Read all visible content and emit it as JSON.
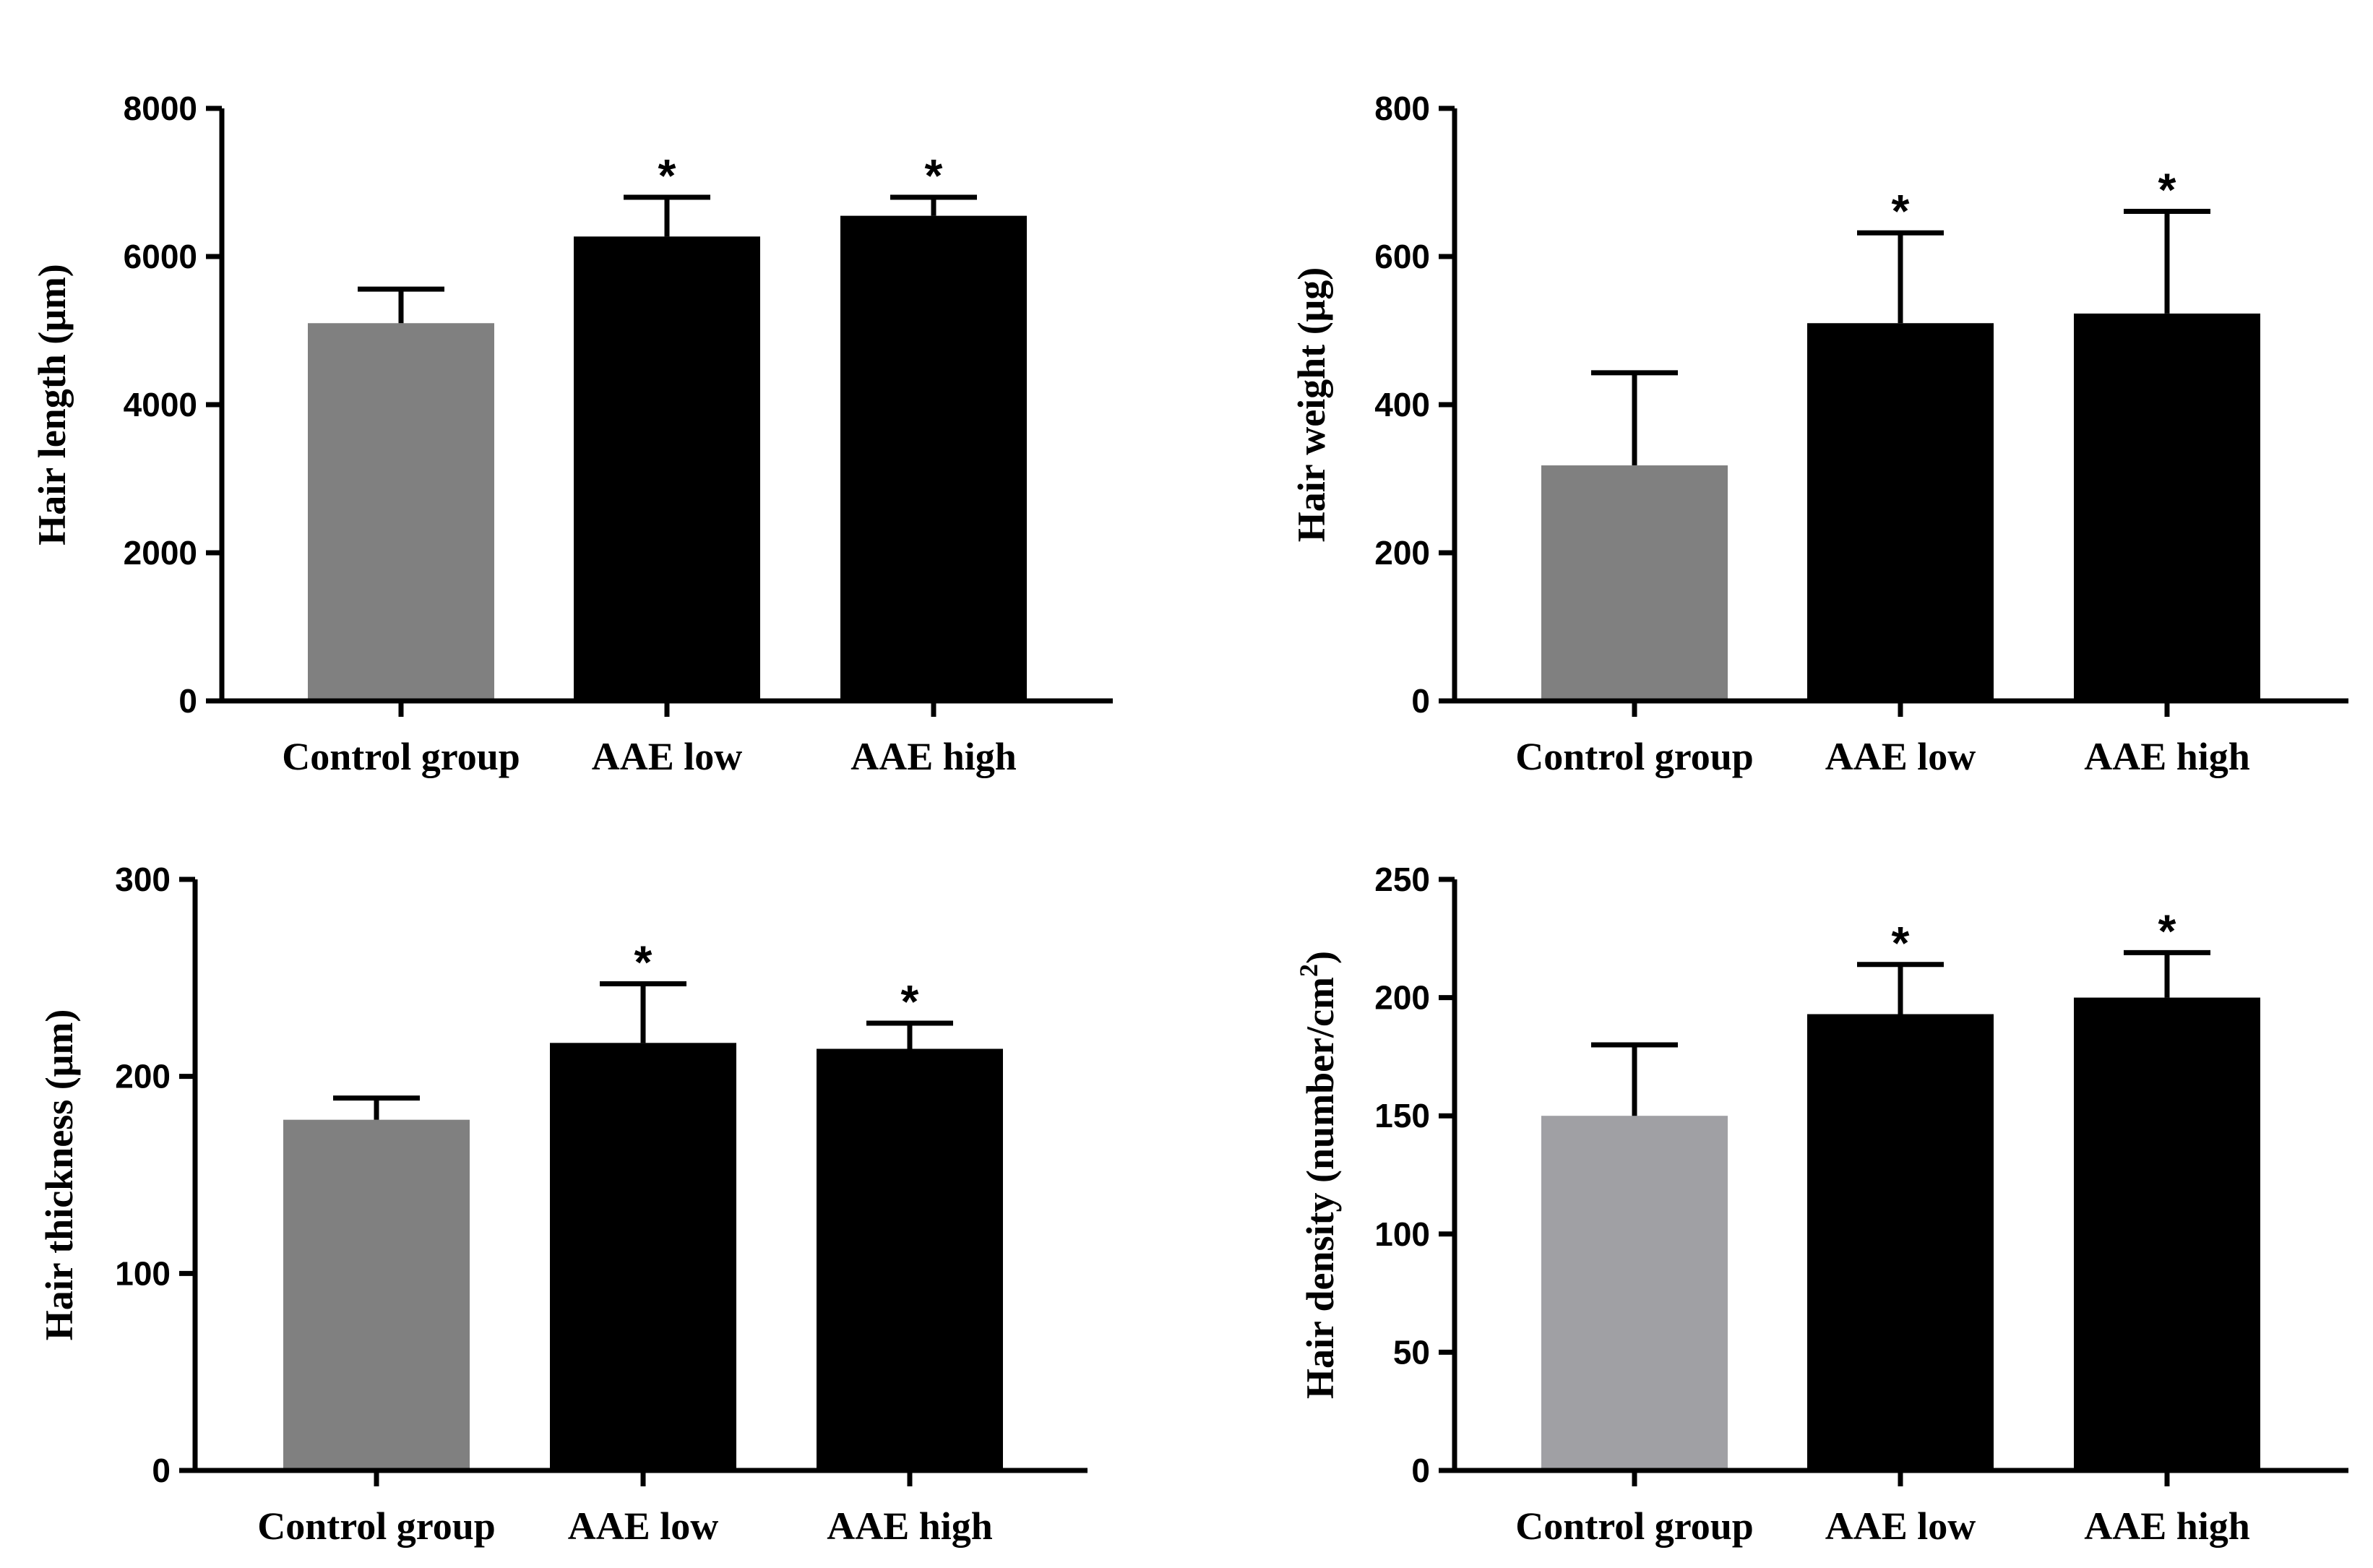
{
  "chart_data": [
    {
      "type": "bar",
      "categories": [
        "Control group",
        "AAE low",
        "AAE high"
      ],
      "values": [
        5100,
        6270,
        6550
      ],
      "errors": [
        460,
        530,
        250
      ],
      "significance": [
        "",
        "*",
        "*"
      ],
      "colors": [
        "#808080",
        "#000000",
        "#000000"
      ],
      "ylabel": "Hair length (μm)",
      "ylim": [
        0,
        8000
      ],
      "yticks": [
        "0",
        "2000",
        "4000",
        "6000",
        "8000"
      ],
      "grid": false
    },
    {
      "type": "bar",
      "categories": [
        "Control group",
        "AAE low",
        "AAE high"
      ],
      "values": [
        318,
        510,
        523
      ],
      "errors": [
        125,
        122,
        138
      ],
      "significance": [
        "",
        "*",
        "*"
      ],
      "colors": [
        "#808080",
        "#000000",
        "#000000"
      ],
      "ylabel": "Hair weight (μg)",
      "ylim": [
        0,
        800
      ],
      "yticks": [
        "0",
        "200",
        "400",
        "600",
        "800"
      ],
      "grid": false
    },
    {
      "type": "bar",
      "categories": [
        "Control group",
        "AAE low",
        "AAE high"
      ],
      "values": [
        178,
        217,
        214
      ],
      "errors": [
        11,
        30,
        13
      ],
      "significance": [
        "",
        "*",
        "*"
      ],
      "colors": [
        "#808080",
        "#000000",
        "#000000"
      ],
      "ylabel": "Hair thickness (μm)",
      "ylim": [
        0,
        300
      ],
      "yticks": [
        "0",
        "100",
        "200",
        "300"
      ],
      "grid": false
    },
    {
      "type": "bar",
      "categories": [
        "Control group",
        "AAE low",
        "AAE high"
      ],
      "values": [
        150,
        193,
        200
      ],
      "errors": [
        30,
        21,
        19
      ],
      "significance": [
        "",
        "*",
        "*"
      ],
      "colors": [
        "#a0a0a4",
        "#000000",
        "#000000"
      ],
      "ylabel": "Hair density (number/cm",
      "ylabel_superscript": "2",
      "ylabel_suffix": ")",
      "ylim": [
        0,
        250
      ],
      "yticks": [
        "0",
        "50",
        "100",
        "150",
        "200",
        "250"
      ],
      "grid": false
    }
  ]
}
